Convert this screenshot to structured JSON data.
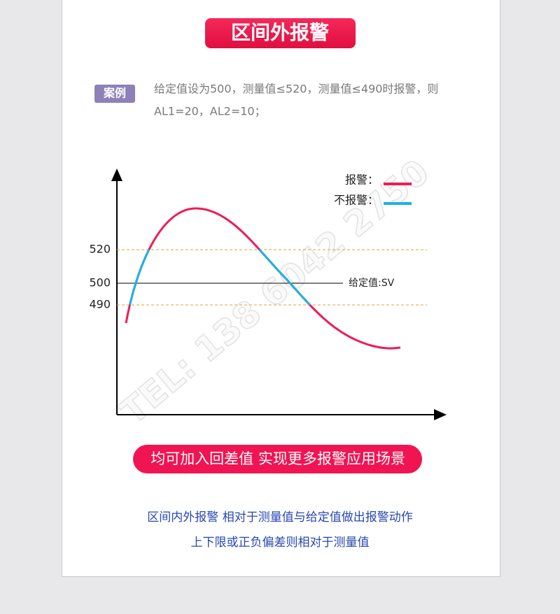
{
  "title": "区间外报警",
  "case": {
    "badge": "案例",
    "text_lines": [
      "给定值设为500，测量值≤520，测量值≤490时报警，则",
      "AL1=20，AL2=10；"
    ]
  },
  "diagram": {
    "y_labels": [
      "520",
      "500",
      "490"
    ],
    "sv_label": "给定值:SV",
    "legend": [
      {
        "label": "报警："
      },
      {
        "label": "不报警："
      }
    ],
    "watermark": "TEL: 138 6042 2750"
  },
  "banner": "均可加入回差值 实现更多报警应用场景",
  "notes": [
    "区间内外报警 相对于测量值与给定值做出报警动作",
    "上下限或正负偏差则相对于测量值"
  ]
}
